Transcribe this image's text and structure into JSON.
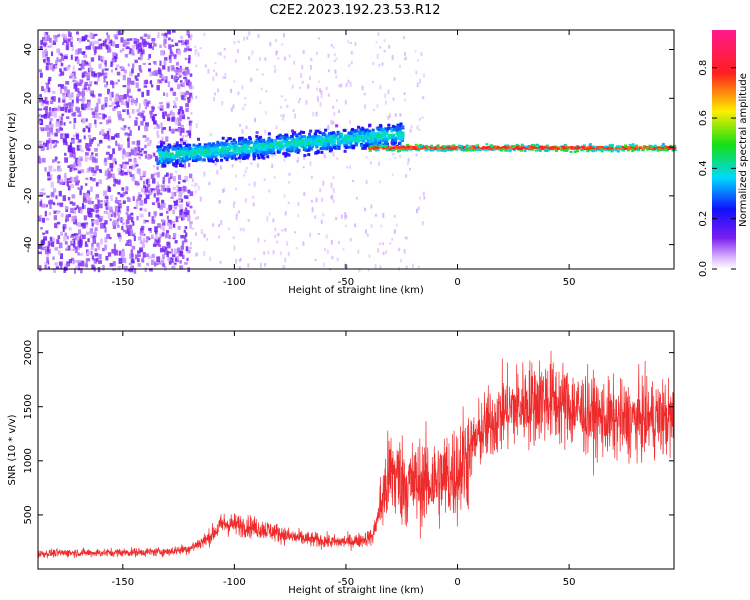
{
  "title": "C2E2.2023.192.23.53.R12",
  "colors": {
    "snr_line": "#ee2a2a",
    "background": "#ffffff",
    "axes": "#000000"
  },
  "chart_data": [
    {
      "type": "heatmap",
      "xlabel": "Height of straight line (km)",
      "ylabel": "Frequency (Hz)",
      "xlim": [
        -188,
        97
      ],
      "ylim": [
        -50,
        48
      ],
      "xticks": [
        -150,
        -100,
        -50,
        0,
        50
      ],
      "yticks": [
        -40,
        -20,
        0,
        20,
        40
      ],
      "colorbar": {
        "label": "Normalized spectral amplitude",
        "range": [
          0,
          0.95
        ],
        "ticks": [
          "0.0",
          "0.2",
          "0.4",
          "0.6",
          "0.8"
        ],
        "tick_values": [
          0.0,
          0.2,
          0.4,
          0.6,
          0.8
        ],
        "colormap": "rainbow (white-violet-blue-cyan-green-yellow-red-magenta)"
      },
      "features": {
        "noise_region_x": [
          -188,
          -120
        ],
        "broad_signal_x": [
          -135,
          -25
        ],
        "broad_signal_center_hz_start": -3,
        "broad_signal_center_hz_end": 6,
        "narrow_line_x": [
          -40,
          97
        ],
        "narrow_line_hz": 0
      }
    },
    {
      "type": "line",
      "xlabel": "Height of straight line (km)",
      "ylabel": "SNR (10 * v/v)",
      "xlim": [
        -188,
        97
      ],
      "ylim": [
        0,
        2200
      ],
      "xticks": [
        -150,
        -100,
        -50,
        0,
        50
      ],
      "yticks": [
        500,
        1000,
        1500,
        2000
      ],
      "series": [
        {
          "x": [
            -188,
            -175,
            -160,
            -145,
            -130,
            -120,
            -112,
            -105,
            -95,
            -85,
            -75,
            -65,
            -55,
            -45,
            -38,
            -33,
            -30,
            -27,
            -22,
            -15,
            -8,
            0,
            10,
            20,
            30,
            40,
            50,
            60,
            70,
            80,
            90,
            97
          ],
          "values": [
            140,
            150,
            150,
            155,
            160,
            190,
            280,
            420,
            400,
            360,
            300,
            270,
            250,
            260,
            300,
            700,
            900,
            850,
            780,
            800,
            820,
            900,
            1250,
            1450,
            1520,
            1580,
            1500,
            1420,
            1370,
            1380,
            1400,
            1380
          ]
        }
      ]
    }
  ]
}
